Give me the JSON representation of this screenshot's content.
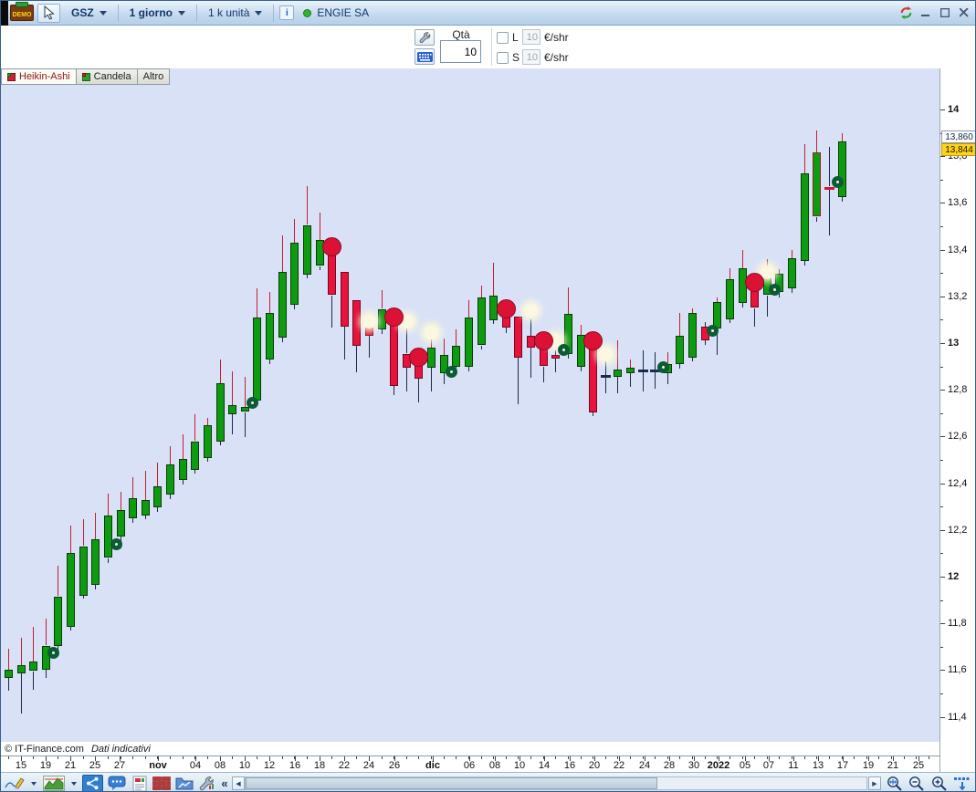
{
  "title_bar": {
    "demo": "DEMO",
    "symbol": "GSZ",
    "timeframe": "1 giorno",
    "units": "1 k unità",
    "info": "i",
    "instrument": "ENGIE SA"
  },
  "order_bar": {
    "qty_label": "Qtà",
    "qty_value": "10",
    "long": {
      "label": "L",
      "value": "10",
      "unit": "€/shr"
    },
    "short": {
      "label": "S",
      "value": "10",
      "unit": "€/shr"
    }
  },
  "tabs": [
    {
      "label": "Heikin-Ashi",
      "active": true
    },
    {
      "label": "Candela",
      "active": false
    },
    {
      "label": "Altro",
      "active": false
    }
  ],
  "footer": {
    "copyright": "© IT-Finance.com",
    "disclaimer": "Dati indicativi"
  },
  "glyphs": {
    "collapse": "«",
    "scroll_left": "◀",
    "scroll_right": "▶"
  },
  "price_tags": [
    {
      "value": "13,860",
      "type": "previous"
    },
    {
      "value": "13,844",
      "type": "current"
    }
  ],
  "colors": {
    "up": "#0f9b10",
    "down": "#e8123c",
    "chart_bg": "#d9e1f7",
    "buy_ring": "#0b5b36",
    "sell_marker": "#dc1136",
    "pale_dot": "#fbf7e0",
    "current_tag_bg": "#ffd21e",
    "wick_up": "#c41e30",
    "wick_dark": "#1c2b4a"
  },
  "chart_data": {
    "type": "candlestick",
    "style": "heikin-ashi",
    "instrument": "ENGIE SA",
    "timeframe": "1 giorno",
    "y_axis": {
      "min": 11.4,
      "max": 14.0,
      "tick_step": 0.2,
      "labels": [
        "14",
        "13,8",
        "13,6",
        "13,4",
        "13,2",
        "13",
        "12,8",
        "12,6",
        "12,4",
        "12,2",
        "12",
        "11,8",
        "11,6",
        "11,4"
      ],
      "bold_labels": [
        "14",
        "13",
        "12"
      ]
    },
    "x_axis": {
      "labels": [
        [
          "15",
          22
        ],
        [
          "19",
          49
        ],
        [
          "21",
          76
        ],
        [
          "25",
          103
        ],
        [
          "27",
          130
        ],
        [
          "nov",
          172
        ],
        [
          "04",
          213
        ],
        [
          "08",
          240
        ],
        [
          "10",
          267
        ],
        [
          "12",
          294
        ],
        [
          "16",
          322
        ],
        [
          "18",
          349
        ],
        [
          "22",
          376
        ],
        [
          "24",
          403
        ],
        [
          "26",
          431
        ],
        [
          "dic",
          473
        ],
        [
          "06",
          513
        ],
        [
          "08",
          541
        ],
        [
          "10",
          568
        ],
        [
          "14",
          595
        ],
        [
          "16",
          623
        ],
        [
          "20",
          650
        ],
        [
          "22",
          677
        ],
        [
          "24",
          705
        ],
        [
          "28",
          732
        ],
        [
          "30",
          759
        ],
        [
          "2022",
          786
        ],
        [
          "05",
          815
        ],
        [
          "07",
          841
        ],
        [
          "11",
          868
        ],
        [
          "13",
          895
        ],
        [
          "17",
          922
        ],
        [
          "19",
          950
        ],
        [
          "21",
          977
        ],
        [
          "25",
          1005
        ]
      ],
      "bold": [
        "nov",
        "dic",
        "2022"
      ]
    },
    "candles": [
      {
        "t": "g",
        "o": 11.565,
        "h": 11.69,
        "l": 11.51,
        "c": 11.6
      },
      {
        "t": "g",
        "o": 11.585,
        "h": 11.74,
        "l": 11.415,
        "c": 11.62
      },
      {
        "t": "g",
        "o": 11.595,
        "h": 11.785,
        "l": 11.515,
        "c": 11.635
      },
      {
        "t": "g",
        "o": 11.605,
        "h": 11.82,
        "l": 11.565,
        "c": 11.705
      },
      {
        "t": "g",
        "o": 11.705,
        "h": 12.045,
        "l": 11.685,
        "c": 11.915
      },
      {
        "t": "g",
        "o": 11.785,
        "h": 12.22,
        "l": 11.77,
        "c": 12.1
      },
      {
        "t": "g",
        "o": 11.92,
        "h": 12.245,
        "l": 11.905,
        "c": 12.13
      },
      {
        "t": "g",
        "o": 11.965,
        "h": 12.275,
        "l": 11.945,
        "c": 12.16
      },
      {
        "t": "g",
        "o": 12.08,
        "h": 12.355,
        "l": 12.06,
        "c": 12.26
      },
      {
        "t": "g",
        "o": 12.17,
        "h": 12.365,
        "l": 12.12,
        "c": 12.285
      },
      {
        "t": "g",
        "o": 12.25,
        "h": 12.425,
        "l": 12.23,
        "c": 12.335
      },
      {
        "t": "g",
        "o": 12.265,
        "h": 12.455,
        "l": 12.245,
        "c": 12.33
      },
      {
        "t": "g",
        "o": 12.295,
        "h": 12.49,
        "l": 12.275,
        "c": 12.385
      },
      {
        "t": "g",
        "o": 12.35,
        "h": 12.56,
        "l": 12.33,
        "c": 12.48
      },
      {
        "t": "g",
        "o": 12.415,
        "h": 12.61,
        "l": 12.395,
        "c": 12.505
      },
      {
        "t": "g",
        "o": 12.46,
        "h": 12.695,
        "l": 12.44,
        "c": 12.58
      },
      {
        "t": "g",
        "o": 12.51,
        "h": 12.68,
        "l": 12.49,
        "c": 12.65
      },
      {
        "t": "g",
        "o": 12.58,
        "h": 12.93,
        "l": 12.565,
        "c": 12.83
      },
      {
        "t": "g",
        "o": 12.695,
        "h": 12.88,
        "l": 12.61,
        "c": 12.735
      },
      {
        "t": "g",
        "o": 12.705,
        "h": 12.855,
        "l": 12.6,
        "c": 12.725
      },
      {
        "t": "g",
        "o": 12.755,
        "h": 13.235,
        "l": 12.735,
        "c": 13.11
      },
      {
        "t": "g",
        "o": 12.93,
        "h": 13.22,
        "l": 12.91,
        "c": 13.13
      },
      {
        "t": "g",
        "o": 13.025,
        "h": 13.46,
        "l": 13.005,
        "c": 13.305
      },
      {
        "t": "g",
        "o": 13.165,
        "h": 13.53,
        "l": 13.145,
        "c": 13.43
      },
      {
        "t": "g",
        "o": 13.295,
        "h": 13.67,
        "l": 13.275,
        "c": 13.505
      },
      {
        "t": "g",
        "o": 13.33,
        "h": 13.56,
        "l": 13.315,
        "c": 13.44
      },
      {
        "t": "r",
        "o": 13.385,
        "h": 13.41,
        "l": 13.07,
        "c": 13.205
      },
      {
        "t": "r",
        "o": 13.305,
        "h": 13.305,
        "l": 12.93,
        "c": 13.07
      },
      {
        "t": "r",
        "o": 13.185,
        "h": 13.185,
        "l": 12.875,
        "c": 12.99
      },
      {
        "t": "r",
        "o": 13.065,
        "h": 13.105,
        "l": 12.935,
        "c": 13.03
      },
      {
        "t": "g",
        "o": 13.06,
        "h": 13.225,
        "l": 13.04,
        "c": 13.145
      },
      {
        "t": "r",
        "o": 13.125,
        "h": 13.14,
        "l": 12.775,
        "c": 12.815
      },
      {
        "t": "r",
        "o": 12.955,
        "h": 13.07,
        "l": 12.795,
        "c": 12.895
      },
      {
        "t": "r",
        "o": 12.95,
        "h": 12.96,
        "l": 12.745,
        "c": 12.85
      },
      {
        "t": "g",
        "o": 12.895,
        "h": 13.05,
        "l": 12.795,
        "c": 12.98
      },
      {
        "t": "g",
        "o": 12.87,
        "h": 13.02,
        "l": 12.825,
        "c": 12.95
      },
      {
        "t": "g",
        "o": 12.9,
        "h": 13.06,
        "l": 12.88,
        "c": 12.99
      },
      {
        "t": "g",
        "o": 12.9,
        "h": 13.185,
        "l": 12.88,
        "c": 13.11
      },
      {
        "t": "g",
        "o": 12.99,
        "h": 13.245,
        "l": 12.975,
        "c": 13.195
      },
      {
        "t": "g",
        "o": 13.1,
        "h": 13.345,
        "l": 13.08,
        "c": 13.205
      },
      {
        "t": "r",
        "o": 13.135,
        "h": 13.15,
        "l": 13.04,
        "c": 13.065
      },
      {
        "t": "r",
        "o": 13.115,
        "h": 13.115,
        "l": 12.735,
        "c": 12.94
      },
      {
        "t": "r",
        "o": 13.03,
        "h": 13.1,
        "l": 12.85,
        "c": 12.98
      },
      {
        "t": "r",
        "o": 12.98,
        "h": 12.98,
        "l": 12.835,
        "c": 12.9
      },
      {
        "t": "r",
        "o": 12.95,
        "h": 12.97,
        "l": 12.875,
        "c": 12.935
      },
      {
        "t": "g",
        "o": 12.955,
        "h": 13.24,
        "l": 12.935,
        "c": 13.125
      },
      {
        "t": "g",
        "o": 12.9,
        "h": 13.08,
        "l": 12.88,
        "c": 13.035
      },
      {
        "t": "r",
        "o": 13.04,
        "h": 13.04,
        "l": 12.69,
        "c": 12.705
      },
      {
        "t": "d",
        "o": 12.855,
        "h": 12.93,
        "l": 12.785,
        "c": 12.86
      },
      {
        "t": "g",
        "o": 12.855,
        "h": 13.01,
        "l": 12.785,
        "c": 12.885
      },
      {
        "t": "g",
        "o": 12.87,
        "h": 12.93,
        "l": 12.81,
        "c": 12.895
      },
      {
        "t": "d",
        "o": 12.88,
        "h": 12.97,
        "l": 12.795,
        "c": 12.885
      },
      {
        "t": "d",
        "o": 12.88,
        "h": 12.96,
        "l": 12.805,
        "c": 12.885
      },
      {
        "t": "g",
        "o": 12.87,
        "h": 12.96,
        "l": 12.825,
        "c": 12.91
      },
      {
        "t": "g",
        "o": 12.91,
        "h": 13.13,
        "l": 12.89,
        "c": 13.03
      },
      {
        "t": "g",
        "o": 12.94,
        "h": 13.15,
        "l": 12.92,
        "c": 13.13
      },
      {
        "t": "r",
        "o": 13.07,
        "h": 13.09,
        "l": 12.99,
        "c": 13.01
      },
      {
        "t": "g",
        "o": 13.06,
        "h": 13.195,
        "l": 12.95,
        "c": 13.175
      },
      {
        "t": "g",
        "o": 13.105,
        "h": 13.32,
        "l": 13.085,
        "c": 13.275
      },
      {
        "t": "g",
        "o": 13.17,
        "h": 13.4,
        "l": 13.15,
        "c": 13.32
      },
      {
        "t": "r",
        "o": 13.225,
        "h": 13.26,
        "l": 13.07,
        "c": 13.15
      },
      {
        "t": "g",
        "o": 13.205,
        "h": 13.36,
        "l": 13.115,
        "c": 13.28
      },
      {
        "t": "g",
        "o": 13.215,
        "h": 13.315,
        "l": 13.195,
        "c": 13.295
      },
      {
        "t": "g",
        "o": 13.235,
        "h": 13.4,
        "l": 13.215,
        "c": 13.365
      },
      {
        "t": "g",
        "o": 13.35,
        "h": 13.85,
        "l": 13.33,
        "c": 13.725
      },
      {
        "t": "gm",
        "o": 13.54,
        "h": 13.91,
        "l": 13.52,
        "c": 13.815
      },
      {
        "t": "rd",
        "o": 13.672,
        "h": 13.84,
        "l": 13.46,
        "c": 13.66
      },
      {
        "t": "g",
        "o": 13.625,
        "h": 13.9,
        "l": 13.605,
        "c": 13.865
      }
    ],
    "buy_signals": [
      {
        "i": 4,
        "p": 11.655
      },
      {
        "i": 9,
        "p": 12.12
      },
      {
        "i": 20,
        "p": 12.725
      },
      {
        "i": 36,
        "p": 12.86
      },
      {
        "i": 45,
        "p": 12.955
      },
      {
        "i": 53,
        "p": 12.88
      },
      {
        "i": 57,
        "p": 13.035
      },
      {
        "i": 62,
        "p": 13.21
      },
      {
        "i": 67,
        "p": 13.67
      }
    ],
    "sell_signals": [
      {
        "i": 26,
        "p": 13.415
      },
      {
        "i": 31,
        "p": 13.115
      },
      {
        "i": 33,
        "p": 12.94
      },
      {
        "i": 40,
        "p": 13.15
      },
      {
        "i": 43,
        "p": 13.01
      },
      {
        "i": 47,
        "p": 13.01
      },
      {
        "i": 60,
        "p": 13.26
      }
    ],
    "dots": [
      {
        "i": 29,
        "p": 13.095
      },
      {
        "i": 32,
        "p": 13.095
      },
      {
        "i": 34,
        "p": 13.045
      },
      {
        "i": 42,
        "p": 13.14
      },
      {
        "i": 44,
        "p": 13.01
      },
      {
        "i": 48,
        "p": 12.955
      },
      {
        "i": 61,
        "p": 13.305
      }
    ],
    "last_price": "13,844",
    "previous_price": "13,860"
  }
}
